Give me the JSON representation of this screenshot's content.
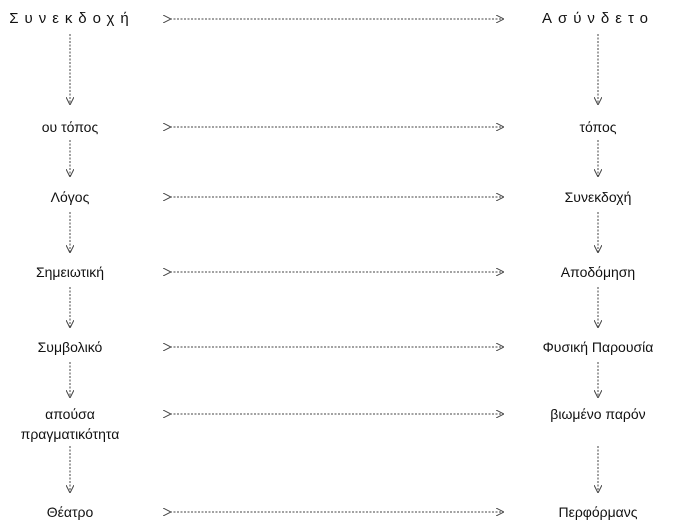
{
  "diagram": {
    "left_column": [
      "Συνεκδοχή",
      "ου τόπος",
      "Λόγος",
      "Σημειωτική",
      "Συμβολικό",
      "απούσα πραγματικότητα",
      "Θέατρο"
    ],
    "right_column": [
      "Ασύνδετο",
      "τόπος",
      "Συνεκδοχή",
      "Αποδόμηση",
      "Φυσική Παρουσία",
      "βιωμένο παρόν",
      "Περφόρμανς"
    ],
    "line_color": "#444444"
  }
}
